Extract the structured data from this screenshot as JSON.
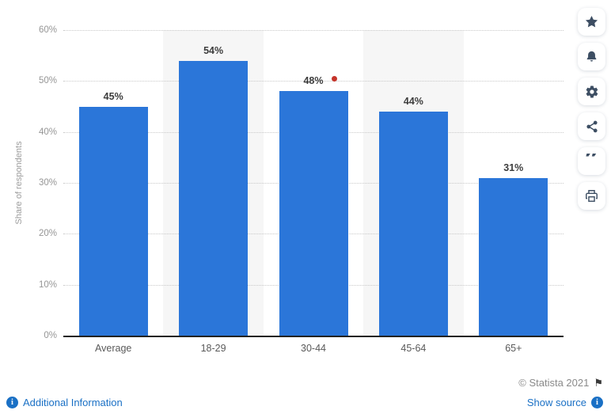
{
  "chart_data": {
    "type": "bar",
    "title": "",
    "categories": [
      "Average",
      "18-29",
      "30-44",
      "45-64",
      "65+"
    ],
    "values": [
      45,
      54,
      48,
      44,
      31
    ],
    "value_labels": [
      "45%",
      "54%",
      "48%",
      "44%",
      "31%"
    ],
    "xlabel": "",
    "ylabel": "Share of respondents",
    "ylim": [
      0,
      60
    ],
    "ytick_values": [
      0,
      10,
      20,
      30,
      40,
      50,
      60
    ],
    "ytick_labels": [
      "0%",
      "10%",
      "20%",
      "30%",
      "40%",
      "50%",
      "60%"
    ],
    "grid": "horizontal-dotted",
    "legend": "none",
    "bar_color": "#2b76d9",
    "shaded_band_color": "#f6f6f6",
    "shaded_category_indexes": [
      1,
      3
    ]
  },
  "annotation_marker": {
    "description": "small red dot near 48% label at 50% gridline",
    "color": "#c5342b"
  },
  "toolbar": {
    "items": [
      {
        "name": "favorite",
        "icon": "star-icon"
      },
      {
        "name": "notifications",
        "icon": "bell-icon"
      },
      {
        "name": "settings",
        "icon": "gear-icon"
      },
      {
        "name": "share",
        "icon": "share-icon"
      },
      {
        "name": "cite",
        "icon": "quote-icon"
      },
      {
        "name": "print",
        "icon": "printer-icon"
      }
    ],
    "icon_color": "#3d4e63"
  },
  "footer": {
    "copyright": "© Statista 2021",
    "show_source_label": "Show source",
    "additional_info_label": "Additional Information",
    "link_color": "#1a70c5"
  }
}
